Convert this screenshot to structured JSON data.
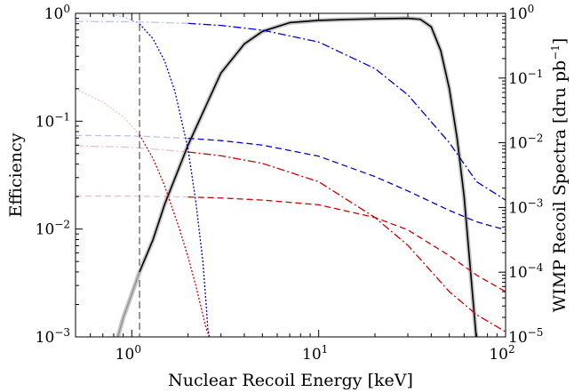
{
  "chart_data": {
    "type": "line",
    "xlabel": "Nuclear Recoil Energy [keV]",
    "ylabel_left": "Efficiency",
    "ylabel_right": "WIMP Recoil Spectra [dru pb",
    "ylabel_right_sup": "−1",
    "ylabel_right_close": "]",
    "xscale": "log",
    "yscale_left": "log",
    "yscale_right": "log",
    "xlim": [
      0.5,
      100
    ],
    "ylim_left": [
      0.001,
      1
    ],
    "ylim_right": [
      1e-05,
      1
    ],
    "x_ticks": [
      {
        "value": 1,
        "base": "10",
        "exp": "0"
      },
      {
        "value": 10,
        "base": "10",
        "exp": "1"
      },
      {
        "value": 100,
        "base": "10",
        "exp": "2"
      }
    ],
    "y_left_ticks": [
      {
        "value": 0.001,
        "base": "10",
        "exp": "−3"
      },
      {
        "value": 0.01,
        "base": "10",
        "exp": "−2"
      },
      {
        "value": 0.1,
        "base": "10",
        "exp": "−1"
      },
      {
        "value": 1,
        "base": "10",
        "exp": "0"
      }
    ],
    "y_right_ticks": [
      {
        "value": 1e-05,
        "base": "10",
        "exp": "−5"
      },
      {
        "value": 0.0001,
        "base": "10",
        "exp": "−4"
      },
      {
        "value": 0.001,
        "base": "10",
        "exp": "−3"
      },
      {
        "value": 0.01,
        "base": "10",
        "exp": "−2"
      },
      {
        "value": 0.1,
        "base": "10",
        "exp": "−1"
      },
      {
        "value": 1,
        "base": "10",
        "exp": "0"
      }
    ],
    "threshold_line": {
      "x": 1.1,
      "color": "#555555",
      "style": "dashed"
    },
    "series": [
      {
        "axis": "left",
        "color": "#000000",
        "style": "solid",
        "faded_below": 1.1,
        "x": [
          0.75,
          0.9,
          1.0,
          1.1,
          1.3,
          1.5,
          2.0,
          3.0,
          4.0,
          5.0,
          7.0,
          10,
          15,
          20,
          30,
          35,
          40,
          45,
          50,
          55,
          60,
          65,
          70
        ],
        "y": [
          0.0005,
          0.0015,
          0.0025,
          0.004,
          0.008,
          0.017,
          0.06,
          0.28,
          0.52,
          0.68,
          0.82,
          0.86,
          0.88,
          0.89,
          0.9,
          0.88,
          0.75,
          0.45,
          0.2,
          0.07,
          0.02,
          0.004,
          0.0009
        ]
      },
      {
        "axis": "right",
        "color": "#0000cc",
        "style": "dashdot",
        "faded_below": 1.1,
        "x": [
          0.5,
          1,
          2,
          3,
          5,
          10,
          20,
          30,
          50,
          70,
          100
        ],
        "y": [
          0.75,
          0.74,
          0.7,
          0.65,
          0.55,
          0.36,
          0.14,
          0.055,
          0.01,
          0.0025,
          0.0013
        ]
      },
      {
        "axis": "right",
        "color": "#0000cc",
        "style": "dashed",
        "faded_below": 1.1,
        "x": [
          0.5,
          1,
          2,
          3,
          5,
          10,
          20,
          30,
          50,
          70,
          100
        ],
        "y": [
          0.013,
          0.0128,
          0.0117,
          0.0108,
          0.0092,
          0.0062,
          0.003,
          0.0018,
          0.0009,
          0.0006,
          0.00045
        ]
      },
      {
        "axis": "right",
        "color": "#cc0000",
        "style": "dashdot",
        "faded_below": 1.1,
        "x": [
          0.5,
          1,
          2,
          3,
          5,
          10,
          20,
          30,
          50,
          70,
          100
        ],
        "y": [
          0.009,
          0.0085,
          0.0072,
          0.0063,
          0.0048,
          0.0025,
          0.0007,
          0.00026,
          5e-05,
          2.2e-05,
          1.2e-05
        ]
      },
      {
        "axis": "right",
        "color": "#cc0000",
        "style": "dashed",
        "faded_below": 1.1,
        "x": [
          0.5,
          1,
          2,
          3,
          5,
          10,
          20,
          30,
          50,
          70,
          100
        ],
        "y": [
          0.0015,
          0.0015,
          0.00145,
          0.0014,
          0.0013,
          0.0011,
          0.0007,
          0.00045,
          0.00018,
          9e-05,
          5e-05
        ]
      },
      {
        "axis": "left",
        "color": "#0000cc",
        "style": "dotted",
        "faded_below": 1.1,
        "x": [
          0.75,
          0.9,
          1.1,
          1.3,
          1.5,
          1.7,
          2.0,
          2.2,
          2.4,
          2.5,
          2.55,
          2.6
        ],
        "y": [
          0.98,
          0.93,
          0.8,
          0.58,
          0.36,
          0.19,
          0.055,
          0.018,
          0.005,
          0.002,
          0.0012,
          0.001
        ]
      },
      {
        "axis": "left",
        "color": "#cc0000",
        "style": "dotted",
        "faded_below": 1.1,
        "x": [
          0.5,
          0.7,
          0.9,
          1.1,
          1.3,
          1.5,
          1.8,
          2.0,
          2.2,
          2.4,
          2.5,
          2.6
        ],
        "y": [
          0.2,
          0.15,
          0.11,
          0.075,
          0.045,
          0.025,
          0.01,
          0.0055,
          0.003,
          0.0016,
          0.0012,
          0.001
        ]
      }
    ]
  }
}
